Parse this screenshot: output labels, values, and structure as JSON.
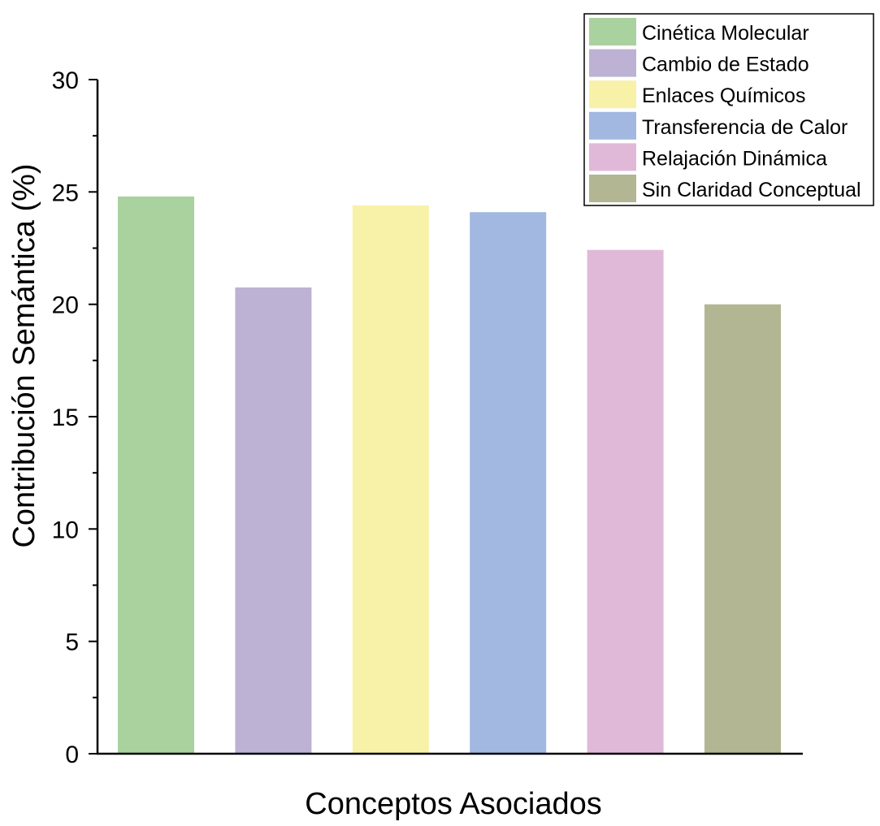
{
  "chart_data": {
    "type": "bar",
    "title": "",
    "xlabel": "Conceptos Asociados",
    "ylabel": "Contribución Semántica (%)",
    "ylim": [
      0,
      30
    ],
    "yticks": [
      0,
      5,
      10,
      15,
      20,
      25,
      30
    ],
    "grid": false,
    "legend_position": "top-right",
    "categories": [
      "Cinética Molecular",
      "Cambio de Estado",
      "Enlaces Químicos",
      "Transferencia de Calor",
      "Relajación Dinámica",
      "Sin Claridad Conceptual"
    ],
    "values": [
      24.8,
      20.75,
      24.4,
      24.1,
      22.42,
      20.0
    ],
    "colors": [
      "#a9d29e",
      "#bdb2d4",
      "#f8f2a8",
      "#a3b8e0",
      "#e0b9d9",
      "#b2b693"
    ]
  }
}
